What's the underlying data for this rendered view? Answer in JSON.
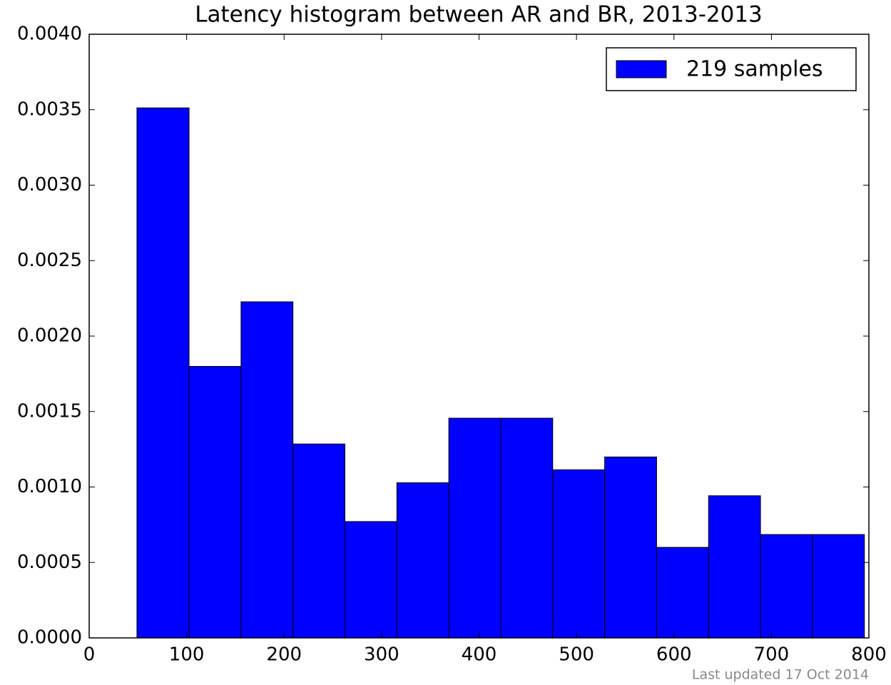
{
  "chart_data": {
    "type": "histogram",
    "title": "Latency histogram between AR and BR, 2013-2013",
    "bins": [
      49,
      102.5,
      155.8,
      209.1,
      262.4,
      315.7,
      369.0,
      422.3,
      475.6,
      528.9,
      582.2,
      635.5,
      688.8,
      742.1,
      795.4
    ],
    "series": [
      {
        "name": "219 samples",
        "color": "#0000ff",
        "values": [
          0.003512,
          0.001799,
          0.002227,
          0.001285,
          0.000771,
          0.001028,
          0.001456,
          0.001456,
          0.001114,
          0.001199,
          0.0006,
          0.000942,
          0.000685,
          0.000685
        ]
      }
    ],
    "xlim": [
      0,
      800
    ],
    "xticks": [
      0,
      100,
      200,
      300,
      400,
      500,
      600,
      700,
      800
    ],
    "ylim": [
      0,
      0.004
    ],
    "yticks": [
      {
        "value": 0,
        "label": "0.0000"
      },
      {
        "value": 0.0005,
        "label": "0.0005"
      },
      {
        "value": 0.001,
        "label": "0.0010"
      },
      {
        "value": 0.0015,
        "label": "0.0015"
      },
      {
        "value": 0.002,
        "label": "0.0020"
      },
      {
        "value": 0.0025,
        "label": "0.0025"
      },
      {
        "value": 0.003,
        "label": "0.0030"
      },
      {
        "value": 0.0035,
        "label": "0.0035"
      },
      {
        "value": 0.004,
        "label": "0.0040"
      }
    ],
    "legend": "upper right",
    "footnote": "Last updated 17 Oct 2014"
  }
}
